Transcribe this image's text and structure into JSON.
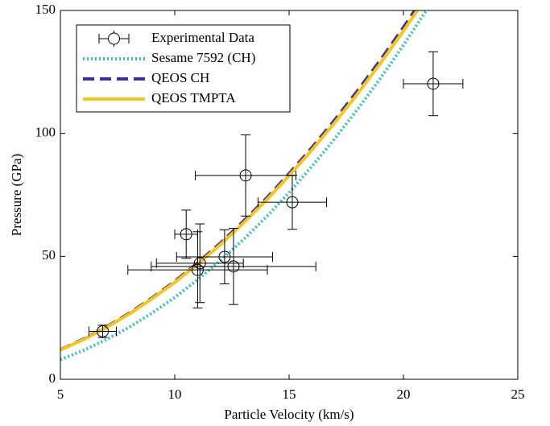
{
  "chart_data": {
    "type": "errorbar_line",
    "xlabel": "Particle Velocity (km/s)",
    "ylabel": "Pressure (GPa)",
    "xlim": [
      5,
      25
    ],
    "xticks": [
      5,
      10,
      15,
      20,
      25
    ],
    "ylim": [
      0,
      150
    ],
    "yticks": [
      0,
      50,
      100,
      150
    ],
    "legend": "upper left",
    "points": {
      "name": "Experimental Data",
      "color": "#000000",
      "x": [
        6.85,
        10.5,
        11.1,
        11.0,
        12.18,
        12.57,
        13.1,
        15.14,
        21.3
      ],
      "y": [
        19.5,
        59,
        47.2,
        44.5,
        49.8,
        45.9,
        82.9,
        72,
        120.2
      ],
      "xerr": [
        0.6,
        0.5,
        1.9,
        3.05,
        2.1,
        3.6,
        2.2,
        1.5,
        1.3
      ],
      "yerr": [
        2.5,
        9.8,
        16,
        15.5,
        11,
        15.5,
        16.5,
        11,
        13
      ]
    },
    "x": [
      5,
      6,
      7,
      8,
      9,
      10,
      11,
      12,
      13,
      14,
      15,
      16,
      17,
      18,
      19,
      20,
      21
    ],
    "series": [
      {
        "name": "Sesame 7592 (CH)",
        "color": "#2ec4b6",
        "style": "dotted",
        "values": [
          8.0,
          11.7,
          16.1,
          21.1,
          26.9,
          33.3,
          40.5,
          48.3,
          56.8,
          66.0,
          75.9,
          86.6,
          97.9,
          109.9,
          122.5,
          135.9,
          150.0
        ]
      },
      {
        "name": "QEOS CH",
        "color": "#3b2ea3",
        "style": "dashed",
        "values": [
          12.0,
          16.3,
          21.2,
          26.8,
          33.0,
          39.8,
          47.3,
          55.4,
          64.2,
          73.5,
          83.6,
          94.2,
          105.5,
          117.4,
          129.9,
          143.1,
          156.9
        ]
      },
      {
        "name": "QEOS TMPTA",
        "color": "#f5c518",
        "style": "solid",
        "values": [
          11.9,
          16.1,
          21.0,
          26.5,
          32.7,
          39.4,
          46.8,
          54.8,
          63.5,
          72.8,
          82.8,
          93.3,
          104.4,
          116.2,
          128.6,
          141.7,
          155.3
        ]
      }
    ]
  }
}
